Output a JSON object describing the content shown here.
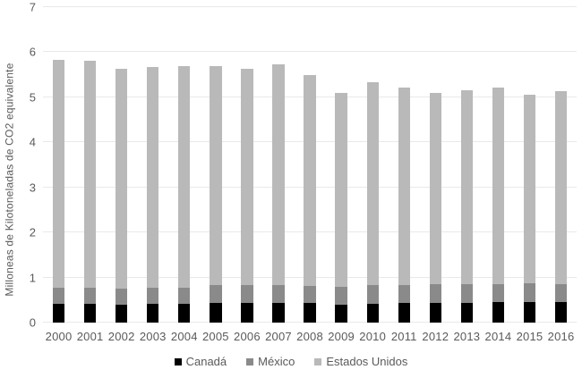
{
  "colors": {
    "gridline": "#e9e9e9",
    "axis_text": "#5a5a5a",
    "canada": "#000000",
    "mexico": "#8a8a8a",
    "estados_unidos": "#b9b9b9",
    "background": "#ffffff"
  },
  "chart_data": {
    "type": "bar",
    "stacked": true,
    "title": "",
    "y_axis_title": "Milloneas de Kilotoneladas de CO2 equivalente",
    "x_axis_title": "",
    "ylim": [
      0,
      7
    ],
    "y_ticks": [
      0,
      1,
      2,
      3,
      4,
      5,
      6,
      7
    ],
    "grid": true,
    "legend_position": "bottom",
    "categories": [
      "2000",
      "2001",
      "2002",
      "2003",
      "2004",
      "2005",
      "2006",
      "2007",
      "2008",
      "2009",
      "2010",
      "2011",
      "2012",
      "2013",
      "2014",
      "2015",
      "2016"
    ],
    "series": [
      {
        "name": "Canadá",
        "key": "canada",
        "color": "#000000",
        "values": [
          0.41,
          0.41,
          0.4,
          0.41,
          0.41,
          0.44,
          0.44,
          0.44,
          0.43,
          0.4,
          0.42,
          0.44,
          0.44,
          0.44,
          0.45,
          0.46,
          0.46
        ]
      },
      {
        "name": "México",
        "key": "mexico",
        "color": "#8a8a8a",
        "values": [
          0.36,
          0.36,
          0.36,
          0.37,
          0.37,
          0.39,
          0.39,
          0.39,
          0.39,
          0.39,
          0.41,
          0.4,
          0.41,
          0.42,
          0.4,
          0.41,
          0.4
        ]
      },
      {
        "name": "Estados Unidos",
        "key": "estados-unidos",
        "color": "#b9b9b9",
        "values": [
          5.07,
          5.05,
          4.88,
          4.89,
          4.91,
          4.87,
          4.8,
          4.91,
          4.67,
          4.31,
          4.5,
          4.37,
          4.24,
          4.3,
          4.37,
          4.19,
          4.28
        ]
      }
    ],
    "stacked_totals": [
      5.84,
      5.82,
      5.64,
      5.67,
      5.69,
      5.7,
      5.63,
      5.74,
      5.49,
      5.1,
      5.33,
      5.21,
      5.09,
      5.16,
      5.22,
      5.06,
      5.14
    ]
  }
}
